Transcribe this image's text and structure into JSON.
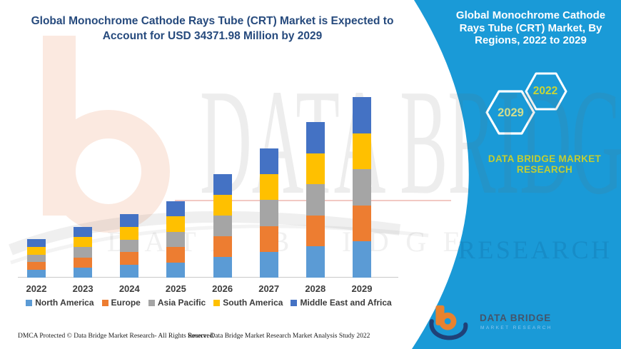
{
  "main_title": {
    "lines": [
      "Global Monochrome Cathode Rays Tube (CRT) Market is Expected to",
      "Account for USD 34371.98 Million by 2029"
    ],
    "color": "#264a7d"
  },
  "side_panel": {
    "background_color": "#1A9AD7",
    "title_lines": [
      "Global Monochrome Cathode",
      "Rays Tube (CRT) Market, By",
      "Regions, 2022 to 2029"
    ],
    "hexagons": [
      {
        "label": "2029"
      },
      {
        "label": "2022"
      }
    ],
    "brand_lines": [
      "DATA BRIDGE MARKET",
      "RESEARCH"
    ],
    "brand_color": "#C2CE33"
  },
  "chart_data": {
    "type": "bar",
    "stacked": true,
    "unit": "USD Million",
    "categories": [
      "2022",
      "2023",
      "2024",
      "2025",
      "2026",
      "2027",
      "2028",
      "2029"
    ],
    "series": [
      {
        "name": "North America",
        "color": "#5B9BD5",
        "values": [
          1467,
          1929,
          2418,
          2907,
          3940,
          4918,
          5923,
          6874.4
        ]
      },
      {
        "name": "Europe",
        "color": "#ED7D31",
        "values": [
          1467,
          1929,
          2418,
          2907,
          3940,
          4918,
          5923,
          6874.4
        ]
      },
      {
        "name": "Asia Pacific",
        "color": "#A5A5A5",
        "values": [
          1467,
          1929,
          2418,
          2907,
          3940,
          4918,
          5923,
          6874.4
        ]
      },
      {
        "name": "South America",
        "color": "#FFC000",
        "values": [
          1467,
          1929,
          2418,
          2907,
          3940,
          4918,
          5923,
          6874.4
        ]
      },
      {
        "name": "Middle East and Africa",
        "color": "#4472C4",
        "values": [
          1467,
          1929,
          2418,
          2907,
          3940,
          4918,
          5923,
          6874.4
        ]
      }
    ],
    "totals": [
      7335,
      9645,
      12090,
      14535,
      19700,
      24590,
      29615,
      34372
    ],
    "ylim": [
      0,
      34372
    ],
    "grid": false,
    "legend_position": "bottom"
  },
  "logo": {
    "name_text": "DATA BRIDGE",
    "sub_text": "MARKET RESEARCH"
  },
  "footer": {
    "left": "DMCA Protected © Data Bridge Market Research- All Rights Reserved.",
    "source": "Source: Data Bridge Market Research Market Analysis Study 2022"
  },
  "watermark": {
    "big_text": "DATA BRIDGE",
    "row_text": "DATA BRIDGE",
    "panel_text": "RESEARCH"
  }
}
